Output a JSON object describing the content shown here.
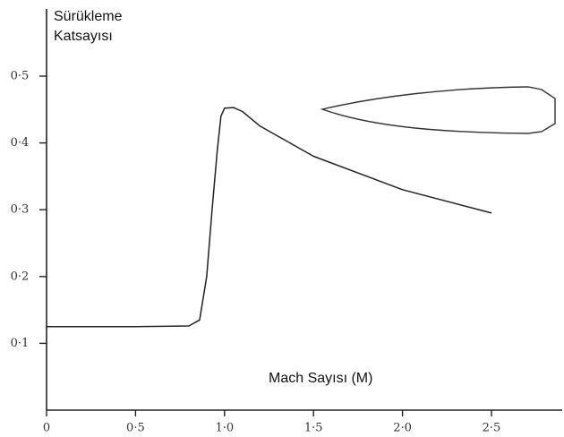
{
  "chart_data": {
    "type": "line",
    "ylabel": "Sürükleme Katsayısı",
    "xlabel": "Mach Sayısı (M)",
    "x": [
      0,
      0.5,
      0.8,
      0.86,
      0.9,
      0.93,
      0.96,
      0.98,
      1.0,
      1.05,
      1.1,
      1.2,
      1.5,
      2.0,
      2.5
    ],
    "values": [
      0.125,
      0.125,
      0.126,
      0.135,
      0.2,
      0.3,
      0.39,
      0.44,
      0.452,
      0.453,
      0.447,
      0.425,
      0.38,
      0.33,
      0.295
    ],
    "color": "#222222",
    "xlim": [
      0,
      2.9
    ],
    "ylim": [
      0,
      0.6
    ],
    "xticks": [
      0,
      {
        "value": 0.5,
        "label": "0·5"
      },
      {
        "value": 1.0,
        "label": "1·0"
      },
      {
        "value": 1.5,
        "label": "1·5"
      },
      {
        "value": 2.0,
        "label": "2·0"
      },
      {
        "value": 2.5,
        "label": "2·5"
      }
    ],
    "yticks": [
      {
        "value": 0.1,
        "label": "0·1"
      },
      {
        "value": 0.2,
        "label": "0·2"
      },
      {
        "value": 0.3,
        "label": "0·3"
      },
      {
        "value": 0.4,
        "label": "0·4"
      },
      {
        "value": 0.5,
        "label": "0·5"
      }
    ]
  }
}
